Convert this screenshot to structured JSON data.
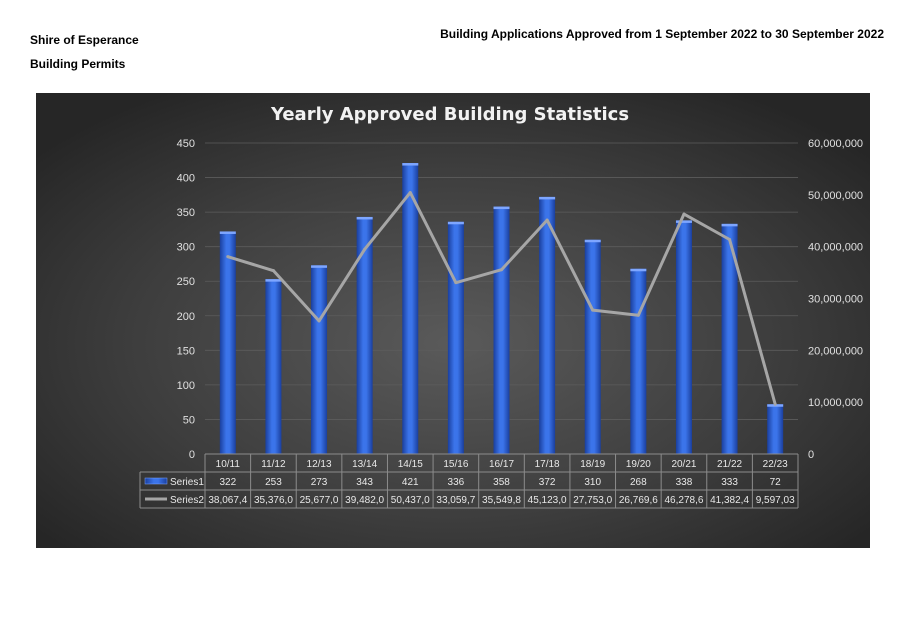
{
  "header": {
    "organisation": "Shire of Esperance",
    "department": "Building Permits",
    "report_title": "Building Applications Approved from 1 September 2022 to 30 September 2022"
  },
  "chart_data": {
    "type": "bar",
    "title": "Yearly Approved Building Statistics",
    "categories": [
      "10/11",
      "11/12",
      "12/13",
      "13/14",
      "14/15",
      "15/16",
      "16/17",
      "17/18",
      "18/19",
      "19/20",
      "20/21",
      "21/22",
      "22/23"
    ],
    "series": [
      {
        "name": "Series1",
        "type": "bar",
        "axis": "left",
        "color": "#2a5fd6",
        "values": [
          322,
          253,
          273,
          343,
          421,
          336,
          358,
          372,
          310,
          268,
          338,
          333,
          72
        ],
        "table_labels": [
          "322",
          "253",
          "273",
          "343",
          "421",
          "336",
          "358",
          "372",
          "310",
          "268",
          "338",
          "333",
          "72"
        ]
      },
      {
        "name": "Series2",
        "type": "line",
        "axis": "right",
        "color": "#a6a6a6",
        "values": [
          38067400,
          35376000,
          25677000,
          39482000,
          50437000,
          33059700,
          35549800,
          45123000,
          27753000,
          26769600,
          46278600,
          41382400,
          9597030
        ],
        "table_labels": [
          "38,067,4",
          "35,376,0",
          "25,677,0",
          "39,482,0",
          "50,437,0",
          "33,059,7",
          "35,549,8",
          "45,123,0",
          "27,753,0",
          "26,769,6",
          "46,278,6",
          "41,382,4",
          "9,597,03"
        ]
      }
    ],
    "y_left": {
      "min": 0,
      "max": 450,
      "step": 50,
      "ticks": [
        "0",
        "50",
        "100",
        "150",
        "200",
        "250",
        "300",
        "350",
        "400",
        "450"
      ]
    },
    "y_right": {
      "min": 0,
      "max": 60000000,
      "step": 10000000,
      "ticks": [
        "0",
        "10,000,000",
        "20,000,000",
        "30,000,000",
        "40,000,000",
        "50,000,000",
        "60,000,000"
      ]
    },
    "grid": true,
    "legend": "data-table",
    "background": "#333333"
  }
}
